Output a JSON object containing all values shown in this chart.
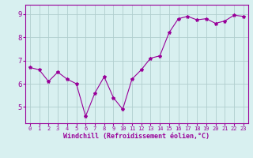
{
  "x": [
    0,
    1,
    2,
    3,
    4,
    5,
    6,
    7,
    8,
    9,
    10,
    11,
    12,
    13,
    14,
    15,
    16,
    17,
    18,
    19,
    20,
    21,
    22,
    23
  ],
  "y": [
    6.7,
    6.6,
    6.1,
    6.5,
    6.2,
    6.0,
    4.6,
    5.6,
    6.3,
    5.4,
    4.9,
    6.2,
    6.6,
    7.1,
    7.2,
    8.2,
    8.8,
    8.9,
    8.75,
    8.8,
    8.6,
    8.7,
    8.95,
    8.9
  ],
  "line_color": "#990099",
  "marker": "*",
  "marker_size": 3,
  "bg_color": "#d8f0f0",
  "grid_color": "#b0cece",
  "xlabel": "Windchill (Refroidissement éolien,°C)",
  "xlabel_color": "#990099",
  "xlabel_fontsize": 6.0,
  "tick_color": "#990099",
  "x_tick_fontsize": 5.0,
  "y_tick_fontsize": 6.5,
  "yticks": [
    5,
    6,
    7,
    8,
    9
  ],
  "ylim": [
    4.3,
    9.4
  ],
  "xlim": [
    -0.5,
    23.5
  ],
  "font_family": "monospace"
}
